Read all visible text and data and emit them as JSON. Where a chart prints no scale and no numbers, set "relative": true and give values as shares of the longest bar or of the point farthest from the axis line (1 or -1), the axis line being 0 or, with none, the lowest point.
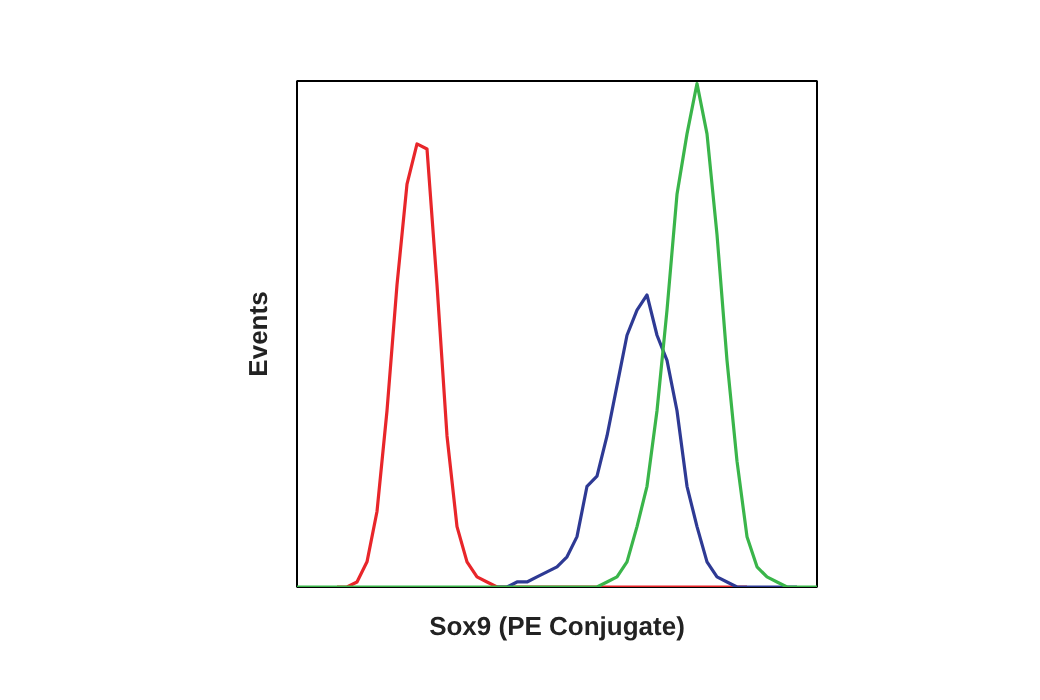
{
  "chart_data": {
    "type": "line",
    "relative": true,
    "xlabel": "Sox9 (PE Conjugate)",
    "ylabel": "Events",
    "categories": [
      null,
      null,
      null,
      null,
      null,
      null,
      null,
      null,
      null,
      null,
      null,
      null,
      null,
      null,
      null,
      null,
      null,
      null,
      null,
      null,
      null,
      null,
      null,
      null,
      null,
      null,
      null,
      null,
      null,
      null,
      null,
      null,
      null,
      null,
      null,
      null,
      null,
      null,
      null,
      null,
      null,
      null,
      null,
      null,
      null,
      null,
      null,
      null,
      null,
      null,
      null,
      null,
      null
    ],
    "series": [
      {
        "color": "#e8262a",
        "values": [
          null,
          null,
          null,
          null,
          0,
          0,
          0.01,
          0.05,
          0.15,
          0.35,
          0.6,
          0.8,
          0.88,
          0.87,
          0.6,
          0.3,
          0.12,
          0.05,
          0.02,
          0.01,
          0,
          0,
          0,
          0,
          0,
          0,
          0,
          0,
          0,
          0,
          0,
          0,
          0,
          0,
          0,
          0,
          0,
          0,
          0,
          0,
          0,
          0,
          0,
          0,
          0,
          0,
          null,
          null,
          null,
          null,
          null,
          null,
          null
        ]
      },
      {
        "color": "#2e3a94",
        "values": [
          null,
          null,
          null,
          null,
          null,
          null,
          null,
          null,
          null,
          null,
          null,
          null,
          null,
          null,
          null,
          null,
          null,
          null,
          null,
          null,
          0,
          0,
          0.01,
          0.01,
          0.02,
          0.03,
          0.04,
          0.06,
          0.1,
          0.2,
          0.22,
          0.3,
          0.4,
          0.5,
          0.55,
          0.58,
          0.5,
          0.45,
          0.35,
          0.2,
          0.12,
          0.05,
          0.02,
          0.01,
          0,
          0,
          0,
          0,
          0,
          0,
          0,
          null,
          null
        ]
      },
      {
        "color": "#3ab54a",
        "values": [
          0,
          0,
          0,
          0,
          0,
          0,
          0,
          0,
          0,
          0,
          0,
          0,
          0,
          0,
          0,
          0,
          0,
          0,
          0,
          0,
          0,
          0,
          0,
          0,
          0,
          0,
          0,
          0,
          0,
          0,
          0,
          0.01,
          0.02,
          0.05,
          0.12,
          0.2,
          0.35,
          0.55,
          0.78,
          0.9,
          1.0,
          0.9,
          0.7,
          0.45,
          0.25,
          0.1,
          0.04,
          0.02,
          0.01,
          0,
          0,
          0,
          0
        ]
      }
    ]
  }
}
